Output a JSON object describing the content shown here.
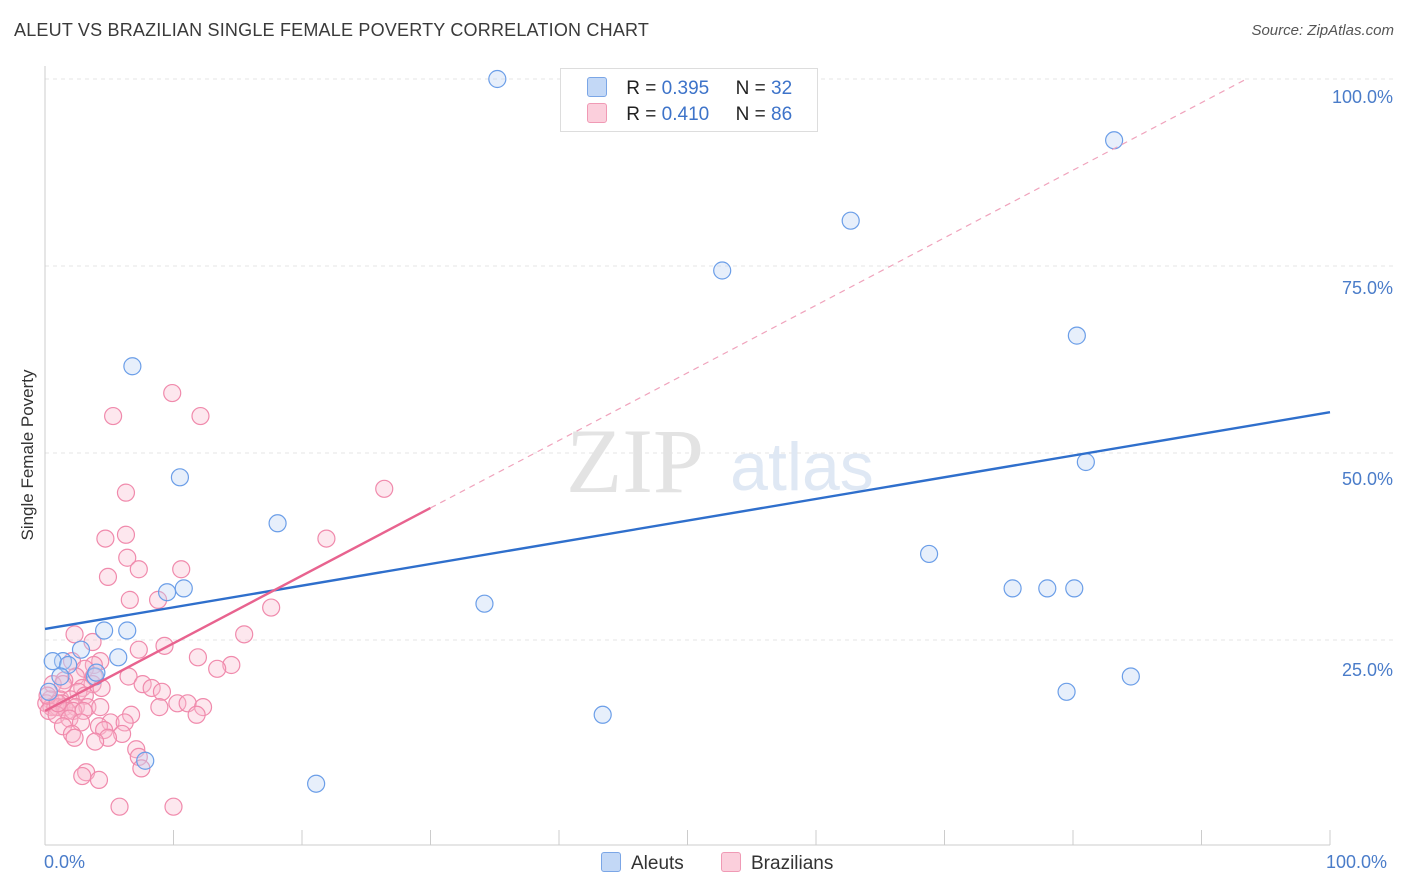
{
  "title": "ALEUT VS BRAZILIAN SINGLE FEMALE POVERTY CORRELATION CHART",
  "source": "Source: ZipAtlas.com",
  "colors": {
    "aleut": "#6b9ee8",
    "brazilian": "#f08aac",
    "aleut_line": "#2f6fcc",
    "brazilian_line": "#e8638f"
  },
  "legend": {
    "aleut": {
      "r_label": "R =",
      "r_value": "0.395",
      "n_label": "N =",
      "n_value": "32"
    },
    "brazilian": {
      "r_label": "R =",
      "r_value": "0.410",
      "n_label": "N =",
      "n_value": "86"
    }
  },
  "chart_data": {
    "type": "scatter",
    "title": "ALEUT VS BRAZILIAN SINGLE FEMALE POVERTY CORRELATION CHART",
    "xlabel": "",
    "ylabel": "Single Female Poverty",
    "xlim": [
      0,
      100
    ],
    "ylim": [
      0,
      100
    ],
    "x_tick_labels": [
      "0.0%",
      "100.0%"
    ],
    "y_tick_labels": [
      "25.0%",
      "50.0%",
      "75.0%",
      "100.0%"
    ],
    "y_ticks": [
      25,
      50,
      75,
      100
    ],
    "legend_position": "bottom",
    "series": [
      {
        "name": "Aleuts",
        "points": [
          [
            35.2,
            100
          ],
          [
            83.2,
            92
          ],
          [
            62.7,
            81.5
          ],
          [
            52.7,
            75
          ],
          [
            80.3,
            66.5
          ],
          [
            6.8,
            62.5
          ],
          [
            10.5,
            48
          ],
          [
            81,
            50
          ],
          [
            18.1,
            42
          ],
          [
            68.8,
            38
          ],
          [
            75.3,
            33.5
          ],
          [
            78,
            33.5
          ],
          [
            80.1,
            33.5
          ],
          [
            10.8,
            33.5
          ],
          [
            9.5,
            33
          ],
          [
            34.2,
            31.5
          ],
          [
            4.6,
            28
          ],
          [
            6.4,
            28
          ],
          [
            1.4,
            24
          ],
          [
            0.6,
            24
          ],
          [
            1.8,
            23.5
          ],
          [
            2.8,
            25.5
          ],
          [
            5.7,
            24.5
          ],
          [
            3.9,
            22
          ],
          [
            79.5,
            20
          ],
          [
            84.5,
            22
          ],
          [
            43.4,
            17
          ],
          [
            7.8,
            11
          ],
          [
            21.1,
            8
          ],
          [
            0.3,
            20
          ],
          [
            1.2,
            22
          ],
          [
            4.0,
            22.5
          ]
        ],
        "trend": {
          "x": [
            0,
            100
          ],
          "y": [
            28.2,
            56.5
          ]
        }
      },
      {
        "name": "Brazilians",
        "points": [
          [
            9.9,
            59
          ],
          [
            5.3,
            56
          ],
          [
            12.1,
            56
          ],
          [
            6.3,
            46
          ],
          [
            26.4,
            46.5
          ],
          [
            6.3,
            40.5
          ],
          [
            4.7,
            40
          ],
          [
            21.9,
            40
          ],
          [
            6.4,
            37.5
          ],
          [
            7.3,
            36
          ],
          [
            10.6,
            36
          ],
          [
            4.9,
            35
          ],
          [
            8.8,
            32
          ],
          [
            6.6,
            32
          ],
          [
            17.6,
            31
          ],
          [
            15.5,
            27.5
          ],
          [
            2.3,
            27.5
          ],
          [
            3.7,
            26.5
          ],
          [
            9.3,
            26
          ],
          [
            7.3,
            25.5
          ],
          [
            11.9,
            24.5
          ],
          [
            4.3,
            24
          ],
          [
            2.1,
            24
          ],
          [
            3.8,
            23.5
          ],
          [
            14.5,
            23.5
          ],
          [
            13.4,
            23
          ],
          [
            3.1,
            23
          ],
          [
            2.4,
            22
          ],
          [
            3.8,
            22
          ],
          [
            6.5,
            22
          ],
          [
            1.5,
            21.5
          ],
          [
            0.6,
            21
          ],
          [
            1.4,
            21
          ],
          [
            3.7,
            21
          ],
          [
            7.6,
            21
          ],
          [
            2.9,
            20.5
          ],
          [
            4.4,
            20.5
          ],
          [
            8.3,
            20.5
          ],
          [
            9.1,
            20
          ],
          [
            2.6,
            20
          ],
          [
            3.1,
            19.5
          ],
          [
            0.4,
            19
          ],
          [
            1.2,
            19
          ],
          [
            2.0,
            19
          ],
          [
            1.3,
            18.5
          ],
          [
            0.1,
            18.5
          ],
          [
            0.5,
            18
          ],
          [
            0.8,
            18
          ],
          [
            1.0,
            18
          ],
          [
            1.5,
            18
          ],
          [
            2.4,
            18
          ],
          [
            3.3,
            18
          ],
          [
            4.3,
            18
          ],
          [
            0.3,
            17.5
          ],
          [
            1.7,
            17.5
          ],
          [
            2.2,
            17.5
          ],
          [
            3.0,
            17.5
          ],
          [
            10.3,
            18.5
          ],
          [
            11.1,
            18.5
          ],
          [
            12.3,
            18
          ],
          [
            8.9,
            18
          ],
          [
            0.9,
            17
          ],
          [
            1.9,
            16.5
          ],
          [
            2.8,
            16
          ],
          [
            11.8,
            17
          ],
          [
            6.7,
            17
          ],
          [
            5.1,
            16
          ],
          [
            4.2,
            15.5
          ],
          [
            6.2,
            16
          ],
          [
            1.4,
            15.5
          ],
          [
            4.6,
            15
          ],
          [
            2.1,
            14.5
          ],
          [
            6.0,
            14.5
          ],
          [
            2.3,
            14
          ],
          [
            4.9,
            14
          ],
          [
            3.9,
            13.5
          ],
          [
            7.1,
            12.5
          ],
          [
            7.3,
            11.5
          ],
          [
            7.5,
            10
          ],
          [
            3.2,
            9.5
          ],
          [
            2.9,
            9
          ],
          [
            4.2,
            8.5
          ],
          [
            5.8,
            5
          ],
          [
            10.0,
            5
          ],
          [
            0.2,
            19.5
          ],
          [
            1.0,
            18.5
          ]
        ],
        "trend": {
          "x": [
            0,
            30
          ],
          "y": [
            17.5,
            44
          ]
        },
        "trend_extension": {
          "x": [
            30,
            93.5
          ],
          "y": [
            44,
            100
          ]
        }
      }
    ]
  }
}
